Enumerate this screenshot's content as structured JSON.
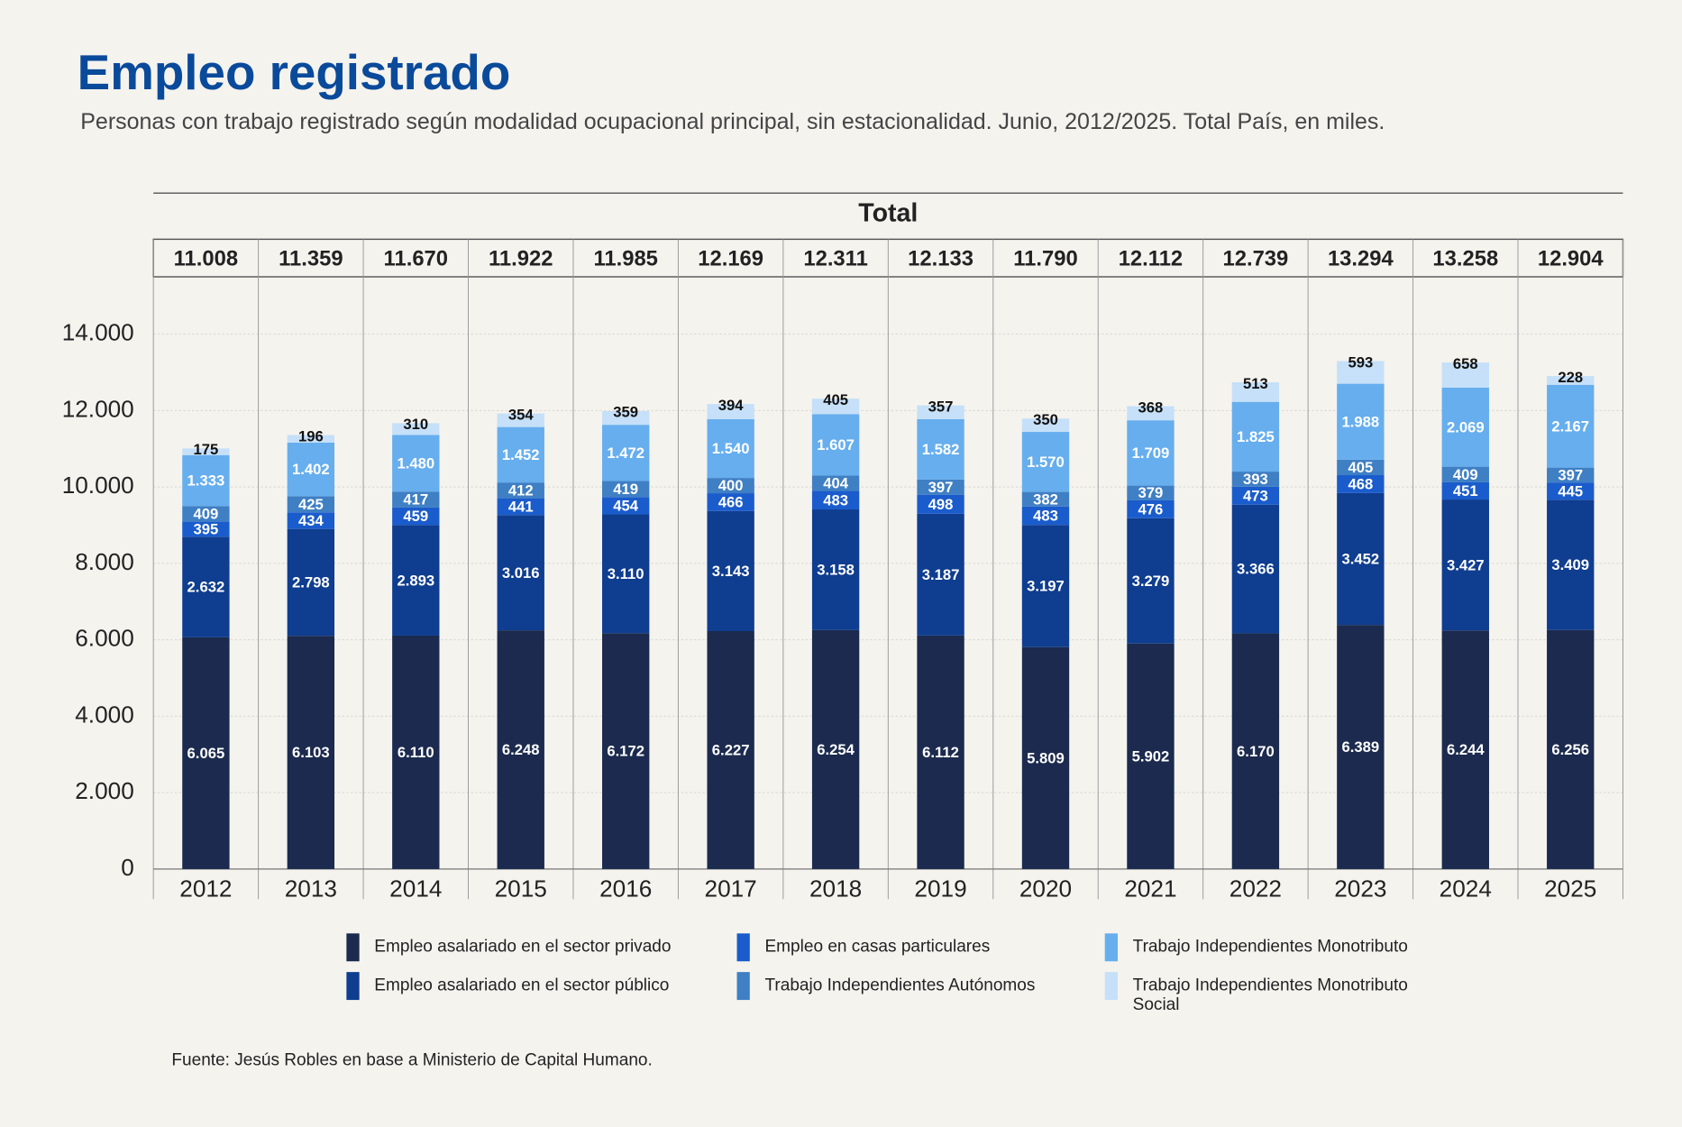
{
  "chart_data": {
    "type": "stacked-bar",
    "title": "Empleo registrado",
    "subtitle": "Personas con trabajo registrado según modalidad ocupacional principal, sin estacionalidad. Junio, 2012/2025. Total País, en miles.",
    "total_header": "Total",
    "source": "Fuente: Jesús Robles en base a Ministerio de Capital Humano.",
    "categories": [
      "2012",
      "2013",
      "2014",
      "2015",
      "2016",
      "2017",
      "2018",
      "2019",
      "2020",
      "2021",
      "2022",
      "2023",
      "2024",
      "2025"
    ],
    "totals": {
      "values": [
        11008,
        11359,
        11670,
        11922,
        11985,
        12169,
        12311,
        12133,
        11790,
        12112,
        12739,
        13294,
        13258,
        12904
      ],
      "value_labels": [
        "11.008",
        "11.359",
        "11.670",
        "11.922",
        "11.985",
        "12.169",
        "12.311",
        "12.133",
        "11.790",
        "12.112",
        "12.739",
        "13.294",
        "13.258",
        "12.904"
      ]
    },
    "ylim": [
      0,
      15500
    ],
    "yticks": [
      {
        "value": 0,
        "label": "0"
      },
      {
        "value": 2000,
        "label": "2.000"
      },
      {
        "value": 4000,
        "label": "4.000"
      },
      {
        "value": 6000,
        "label": "6.000"
      },
      {
        "value": 8000,
        "label": "8.000"
      },
      {
        "value": 10000,
        "label": "10.000"
      },
      {
        "value": 12000,
        "label": "12.000"
      },
      {
        "value": 14000,
        "label": "14.000"
      }
    ],
    "grid": true,
    "series": [
      {
        "name": "Empleo asalariado en el sector privado",
        "color": "#1b2a4e",
        "values": [
          6065,
          6103,
          6110,
          6248,
          6172,
          6227,
          6254,
          6112,
          5809,
          5902,
          6170,
          6389,
          6244,
          6256
        ],
        "value_labels": [
          "6.065",
          "6.103",
          "6.110",
          "6.248",
          "6.172",
          "6.227",
          "6.254",
          "6.112",
          "5.809",
          "5.902",
          "6.170",
          "6.389",
          "6.244",
          "6.256"
        ]
      },
      {
        "name": "Empleo asalariado en el sector público",
        "color": "#0f3d8f",
        "values": [
          2632,
          2798,
          2893,
          3016,
          3110,
          3143,
          3158,
          3187,
          3197,
          3279,
          3366,
          3452,
          3427,
          3409
        ],
        "value_labels": [
          "2.632",
          "2.798",
          "2.893",
          "3.016",
          "3.110",
          "3.143",
          "3.158",
          "3.187",
          "3.197",
          "3.279",
          "3.366",
          "3.452",
          "3.427",
          "3.409"
        ]
      },
      {
        "name": "Empleo en casas particulares",
        "color": "#1a5ccc",
        "values": [
          395,
          434,
          459,
          441,
          454,
          466,
          483,
          498,
          483,
          476,
          473,
          468,
          451,
          445
        ]
      },
      {
        "name": "Trabajo Independientes Autónomos",
        "color": "#3f7fc4",
        "values": [
          409,
          425,
          417,
          412,
          419,
          400,
          404,
          397,
          382,
          379,
          393,
          405,
          409,
          397
        ]
      },
      {
        "name": "Trabajo Independientes Monotributo",
        "color": "#66aeee",
        "values": [
          1333,
          1402,
          1480,
          1452,
          1472,
          1540,
          1607,
          1582,
          1570,
          1709,
          1825,
          1988,
          2069,
          2167
        ],
        "value_labels": [
          "1.333",
          "1.402",
          "1.480",
          "1.452",
          "1.472",
          "1.540",
          "1.607",
          "1.582",
          "1.570",
          "1.709",
          "1.825",
          "1.988",
          "2.069",
          "2.167"
        ]
      },
      {
        "name": "Trabajo Independientes Monotributo Social",
        "color": "#c5e0f8",
        "values": [
          175,
          196,
          310,
          354,
          359,
          394,
          405,
          357,
          350,
          368,
          513,
          593,
          658,
          228
        ]
      }
    ]
  }
}
